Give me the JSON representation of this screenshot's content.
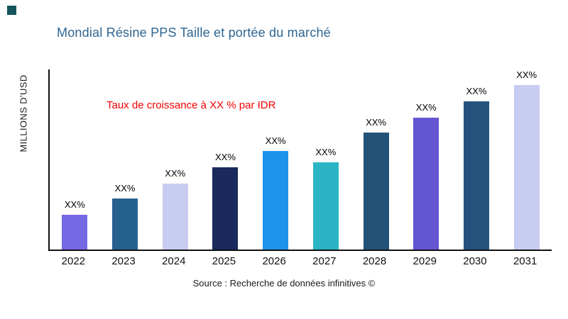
{
  "page": {
    "title": "Mondial Résine PPS Taille et portée du marché",
    "title_color": "#2E6490",
    "corner_color": "#14555C",
    "background": "#ffffff"
  },
  "annotation": {
    "growth_text": "Taux de croissance à XX % par IDR",
    "color": "#F40000"
  },
  "axis": {
    "y_label": "MILLIONS D'USD"
  },
  "footer": {
    "source": "Source : Recherche de données infinitives ©"
  },
  "chart_data": {
    "type": "bar",
    "title": "Mondial Résine PPS Taille et portée du marché",
    "xlabel": "",
    "ylabel": "MILLIONS D'USD",
    "categories": [
      "2022",
      "2023",
      "2024",
      "2025",
      "2026",
      "2027",
      "2028",
      "2029",
      "2030",
      "2031"
    ],
    "values": [
      21,
      31,
      40,
      50,
      60,
      53,
      71,
      80,
      90,
      100
    ],
    "bar_labels": [
      "XX%",
      "XX%",
      "XX%",
      "XX%",
      "XX%",
      "XX%",
      "XX%",
      "XX%",
      "XX%",
      "XX%"
    ],
    "colors": [
      "#7468E4",
      "#27618E",
      "#C7CCF0",
      "#1A2A5C",
      "#1E93EB",
      "#2BB5C4",
      "#235278",
      "#6455D2",
      "#24537D",
      "#C7CCF0"
    ],
    "ylim": [
      0,
      100
    ],
    "grid": false,
    "legend": false,
    "annotation": "Taux de croissance à XX % par IDR"
  }
}
